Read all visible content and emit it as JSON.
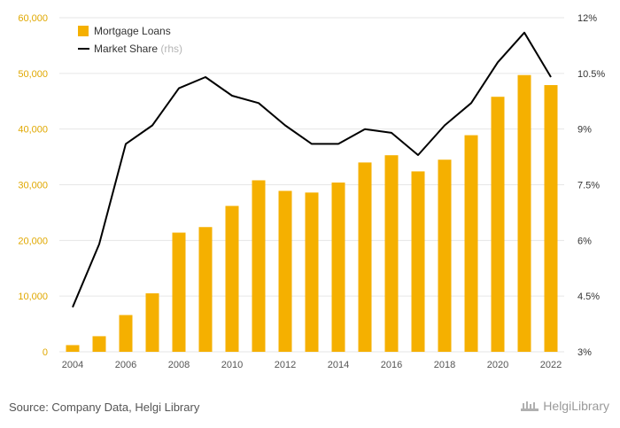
{
  "chart_data": {
    "type": "bar+line",
    "categories": [
      "2004",
      "2005",
      "2006",
      "2007",
      "2008",
      "2009",
      "2010",
      "2011",
      "2012",
      "2013",
      "2014",
      "2015",
      "2016",
      "2017",
      "2018",
      "2019",
      "2020",
      "2021",
      "2022"
    ],
    "x_tick_labels": [
      "2004",
      "2006",
      "2008",
      "2010",
      "2012",
      "2014",
      "2016",
      "2018",
      "2020",
      "2022"
    ],
    "series": [
      {
        "name": "Mortgage Loans",
        "type": "bar",
        "axis": "left",
        "color": "#f5b000",
        "values": [
          1200,
          2800,
          6600,
          10500,
          21400,
          22400,
          26200,
          30800,
          28900,
          28600,
          30400,
          34000,
          35300,
          32400,
          34500,
          38900,
          45800,
          49700,
          47900
        ]
      },
      {
        "name": "Market Share",
        "name_suffix": "(rhs)",
        "type": "line",
        "axis": "right",
        "color": "#000000",
        "values": [
          4.2,
          5.9,
          8.6,
          9.1,
          10.1,
          10.4,
          9.9,
          9.7,
          9.1,
          8.6,
          8.6,
          9.0,
          8.9,
          8.3,
          9.1,
          9.7,
          10.8,
          11.6,
          10.4
        ]
      }
    ],
    "y_left": {
      "min": 0,
      "max": 60000,
      "ticks": [
        "0",
        "10,000",
        "20,000",
        "30,000",
        "40,000",
        "50,000",
        "60,000"
      ]
    },
    "y_right": {
      "min": 3,
      "max": 12,
      "ticks": [
        "3%",
        "4.5%",
        "6%",
        "7.5%",
        "9%",
        "10.5%",
        "12%"
      ]
    },
    "legend_position": "top-left",
    "grid": "horizontal"
  },
  "footer": {
    "source": "Source: Company Data, Helgi Library",
    "brand": "HelgiLibrary"
  },
  "colors": {
    "bar": "#f5b000",
    "line": "#000000",
    "grid": "#e6e6e6",
    "left_axis_text": "#e0a800"
  }
}
